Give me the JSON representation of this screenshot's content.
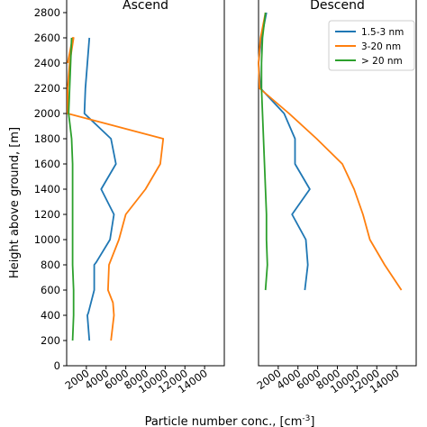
{
  "chart_data": [
    {
      "type": "line",
      "title": "Ascend",
      "ylabel": "Height above ground, [m]",
      "xlabel": "",
      "xlim": [
        0,
        16000
      ],
      "ylim": [
        0,
        2900
      ],
      "xticks": [
        2000,
        4000,
        6000,
        8000,
        10000,
        12000,
        14000
      ],
      "yticks": [
        0,
        200,
        400,
        600,
        800,
        1000,
        1200,
        1400,
        1600,
        1800,
        2000,
        2200,
        2400,
        2600,
        2800
      ],
      "series": [
        {
          "name": "1.5-3 nm",
          "color": "#1f77b4",
          "points": [
            [
              2300,
              200
            ],
            [
              2100,
              400
            ],
            [
              2200,
              420
            ],
            [
              2800,
              600
            ],
            [
              2800,
              800
            ],
            [
              3000,
              820
            ],
            [
              4400,
              1000
            ],
            [
              4800,
              1200
            ],
            [
              3500,
              1400
            ],
            [
              5000,
              1600
            ],
            [
              4500,
              1800
            ],
            [
              1800,
              2000
            ],
            [
              1900,
              2200
            ],
            [
              2100,
              2400
            ],
            [
              2300,
              2600
            ]
          ]
        },
        {
          "name": "3-20 nm",
          "color": "#ff7f0e",
          "points": [
            [
              4500,
              200
            ],
            [
              4800,
              400
            ],
            [
              4700,
              500
            ],
            [
              4200,
              600
            ],
            [
              4300,
              800
            ],
            [
              5300,
              1000
            ],
            [
              6000,
              1200
            ],
            [
              8000,
              1400
            ],
            [
              9500,
              1600
            ],
            [
              9800,
              1800
            ],
            [
              100,
              2000
            ],
            [
              100,
              2200
            ],
            [
              300,
              2400
            ],
            [
              700,
              2600
            ],
            [
              600,
              2600
            ],
            [
              100,
              2400
            ]
          ]
        },
        {
          "name": "> 20 nm",
          "color": "#2ca02c",
          "points": [
            [
              600,
              200
            ],
            [
              700,
              400
            ],
            [
              700,
              600
            ],
            [
              600,
              800
            ],
            [
              600,
              1000
            ],
            [
              600,
              1200
            ],
            [
              600,
              1400
            ],
            [
              600,
              1600
            ],
            [
              500,
              1800
            ],
            [
              200,
              2000
            ],
            [
              300,
              2200
            ],
            [
              400,
              2400
            ],
            [
              500,
              2600
            ]
          ]
        }
      ]
    },
    {
      "type": "line",
      "title": "Descend",
      "xlabel": "Particle number conc., [cm$^{-3}$]",
      "xlim": [
        0,
        16000
      ],
      "ylim": [
        0,
        2900
      ],
      "xticks": [
        2000,
        4000,
        6000,
        8000,
        10000,
        12000,
        14000
      ],
      "legend": "top-right",
      "series": [
        {
          "name": "1.5-3 nm",
          "color": "#1f77b4",
          "points": [
            [
              4700,
              600
            ],
            [
              5000,
              800
            ],
            [
              4800,
              1000
            ],
            [
              3400,
              1200
            ],
            [
              5200,
              1400
            ],
            [
              3700,
              1600
            ],
            [
              3700,
              1800
            ],
            [
              2600,
              2000
            ],
            [
              200,
              2200
            ],
            [
              0,
              2400
            ],
            [
              300,
              2600
            ],
            [
              800,
              2800
            ]
          ]
        },
        {
          "name": "3-20 nm",
          "color": "#ff7f0e",
          "points": [
            [
              14500,
              600
            ],
            [
              12800,
              800
            ],
            [
              11300,
              1000
            ],
            [
              10600,
              1200
            ],
            [
              9700,
              1400
            ],
            [
              8500,
              1600
            ],
            [
              5900,
              1800
            ],
            [
              3100,
              2000
            ],
            [
              100,
              2200
            ],
            [
              0,
              2400
            ],
            [
              200,
              2600
            ],
            [
              700,
              2800
            ]
          ]
        },
        {
          "name": "> 20 nm",
          "color": "#2ca02c",
          "points": [
            [
              700,
              600
            ],
            [
              900,
              800
            ],
            [
              800,
              1000
            ],
            [
              800,
              1200
            ],
            [
              700,
              1400
            ],
            [
              600,
              1600
            ],
            [
              500,
              1800
            ],
            [
              400,
              2000
            ],
            [
              300,
              2200
            ],
            [
              300,
              2400
            ],
            [
              400,
              2600
            ],
            [
              700,
              2800
            ]
          ]
        }
      ]
    }
  ]
}
